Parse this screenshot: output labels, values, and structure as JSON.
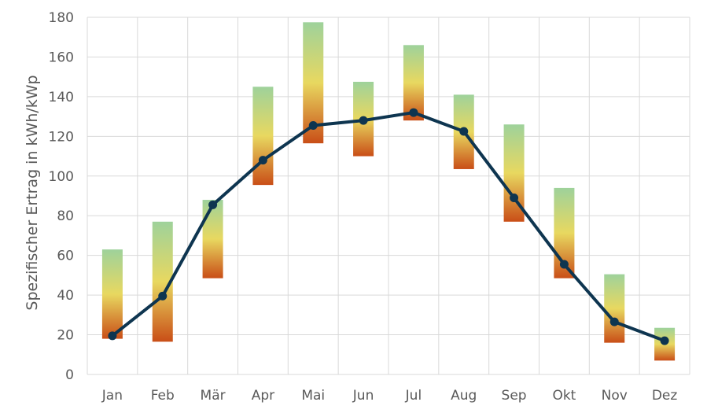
{
  "chart_data": {
    "type": "line",
    "title": "",
    "xlabel": "",
    "ylabel": "Spezifischer Ertrag in kWh/kWp",
    "ylim": [
      0,
      180
    ],
    "yticks": [
      0,
      20,
      40,
      60,
      80,
      100,
      120,
      140,
      160,
      180
    ],
    "yticks_labels": [
      "0",
      "20",
      "40",
      "60",
      "80",
      "100",
      "120",
      "140",
      "160",
      "180"
    ],
    "grid": true,
    "legend": "none",
    "categories": [
      "Jan",
      "Feb",
      "Mär",
      "Apr",
      "Mai",
      "Jun",
      "Jul",
      "Aug",
      "Sep",
      "Okt",
      "Nov",
      "Dez"
    ],
    "range_bars": {
      "min": [
        18,
        16.5,
        48.5,
        95.5,
        116.5,
        110,
        128,
        103.5,
        77,
        48.5,
        16,
        7
      ],
      "max": [
        63,
        77,
        88,
        145,
        177.5,
        147.5,
        166,
        141,
        126,
        94,
        50.5,
        23.5
      ]
    },
    "series": [
      {
        "values": [
          19.5,
          39.5,
          85.5,
          108,
          125.5,
          128,
          132,
          122.5,
          89,
          55.5,
          26.5,
          17
        ]
      }
    ],
    "colors": {
      "line": "#0e3550",
      "gradient_top": "#9ed29b",
      "gradient_mid": "#e8d860",
      "gradient_bottom": "#c94e17",
      "grid": "#d9d9d9",
      "text": "#595959"
    }
  }
}
